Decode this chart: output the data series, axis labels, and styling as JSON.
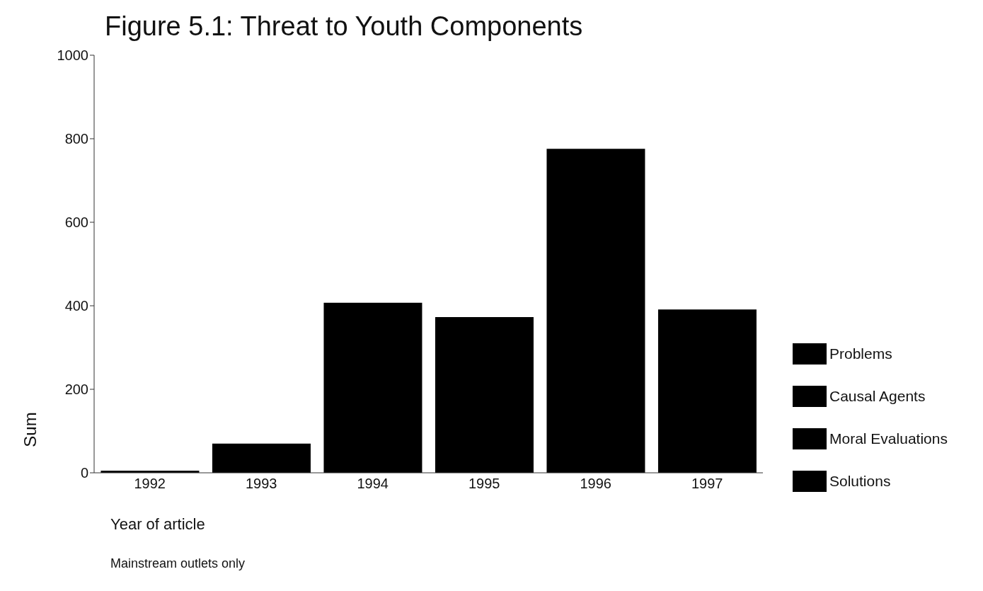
{
  "chart_data": {
    "type": "bar",
    "title": "Figure 5.1: Threat to Youth Components",
    "xlabel": "Year of article",
    "ylabel": "Sum",
    "categories": [
      "1992",
      "1993",
      "1994",
      "1995",
      "1996",
      "1997"
    ],
    "values": [
      5,
      70,
      407,
      373,
      776,
      391
    ],
    "color": "#000000",
    "ylim": [
      0,
      1000
    ],
    "yticks": [
      0,
      200,
      400,
      600,
      800,
      1000
    ],
    "grid": false,
    "annotations": [
      "Problems",
      "Causal Agents",
      "Moral Evaluations",
      "Solutions",
      "Mainstream outlets only"
    ]
  }
}
